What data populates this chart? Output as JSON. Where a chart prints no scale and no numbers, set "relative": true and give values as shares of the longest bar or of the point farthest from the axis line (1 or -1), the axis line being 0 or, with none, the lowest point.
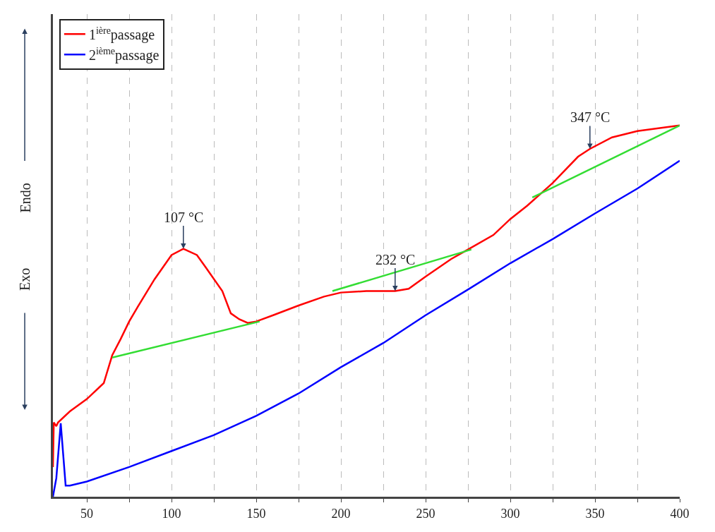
{
  "chart_data": {
    "type": "line",
    "relative": true,
    "xlim": [
      30,
      400
    ],
    "xticks": [
      50,
      {
        "value": 75,
        "label": null
      },
      100,
      {
        "value": 125,
        "label": null
      },
      150,
      {
        "value": 175,
        "label": null
      },
      200,
      {
        "value": 225,
        "label": null
      },
      250,
      {
        "value": 275,
        "label": null
      },
      300,
      {
        "value": 325,
        "label": null
      },
      350,
      {
        "value": 375,
        "label": null
      },
      400
    ],
    "grid": "x",
    "legend": "top left",
    "marker": "none",
    "line_style": "solid",
    "series": [
      {
        "name": "1$^{ière}$passage",
        "color": "#ff0000",
        "x": [
          30,
          30.5,
          32,
          33,
          40,
          50,
          60,
          65,
          70,
          75,
          80,
          90,
          100,
          107,
          115,
          120,
          130,
          135,
          140,
          145,
          150,
          160,
          175,
          190,
          200,
          215,
          232,
          240,
          250,
          265,
          275,
          290,
          300,
          310,
          325,
          340,
          347,
          360,
          375,
          400
        ],
        "values": [
          0.08,
          0.2,
          0.19,
          0.2,
          0.23,
          0.263,
          0.306,
          0.381,
          0.425,
          0.472,
          0.511,
          0.586,
          0.651,
          0.668,
          0.651,
          0.619,
          0.554,
          0.494,
          0.478,
          0.468,
          0.472,
          0.489,
          0.515,
          0.539,
          0.55,
          0.554,
          0.554,
          0.56,
          0.593,
          0.64,
          0.666,
          0.705,
          0.748,
          0.784,
          0.845,
          0.916,
          0.937,
          0.968,
          0.985,
          1.0
        ]
      },
      {
        "name": "2$^{ième}$passage",
        "color": "#0000ff",
        "x": [
          30,
          32,
          34.6,
          37.5,
          40,
          50,
          75,
          100,
          125,
          150,
          175,
          200,
          225,
          250,
          275,
          300,
          325,
          350,
          375,
          400
        ],
        "values": [
          0.0,
          0.05,
          0.198,
          0.03,
          0.03,
          0.041,
          0.08,
          0.123,
          0.166,
          0.218,
          0.278,
          0.349,
          0.414,
          0.489,
          0.558,
          0.629,
          0.694,
          0.763,
          0.83,
          0.905
        ]
      },
      {
        "color": "#33dd33",
        "x": [
          65,
          152
        ],
        "values": [
          0.375,
          0.472
        ]
      },
      {
        "color": "#33dd33",
        "x": [
          195,
          277
        ],
        "values": [
          0.554,
          0.666
        ]
      },
      {
        "color": "#33dd33",
        "x": [
          313,
          400
        ],
        "values": [
          0.806,
          1.0
        ]
      }
    ],
    "annotations": [
      {
        "text": "107 °C",
        "x": 107,
        "y": 0.668
      },
      {
        "text": "232 °C",
        "x": 232,
        "y": 0.554
      },
      {
        "text": "347 °C",
        "x": 347,
        "y": 0.937
      },
      "Endo",
      "Exo"
    ]
  }
}
